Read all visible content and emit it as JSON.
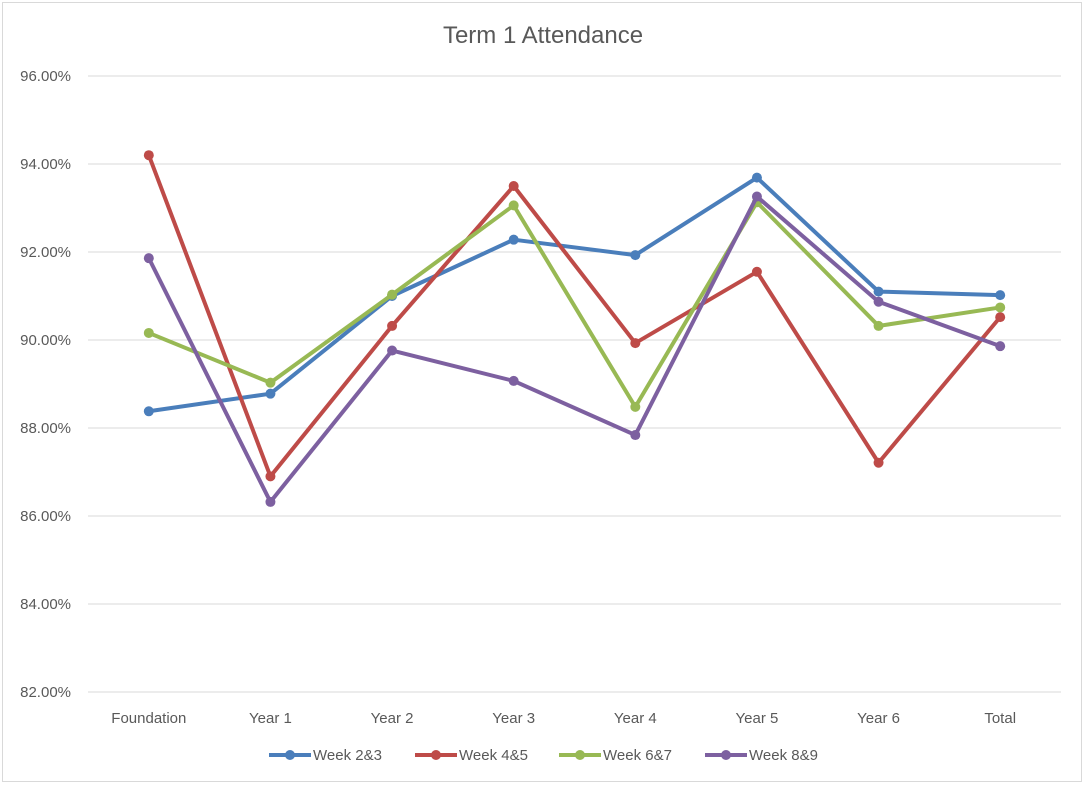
{
  "chart_data": {
    "type": "line",
    "title": "Term 1 Attendance",
    "categories": [
      "Foundation",
      "Year 1",
      "Year 2",
      "Year 3",
      "Year 4",
      "Year 5",
      "Year 6",
      "Total"
    ],
    "ylim": [
      82,
      96
    ],
    "yticks": [
      82,
      84,
      86,
      88,
      90,
      92,
      94,
      96
    ],
    "ytick_labels": [
      "82.00%",
      "84.00%",
      "86.00%",
      "88.00%",
      "90.00%",
      "92.00%",
      "94.00%",
      "96.00%"
    ],
    "grid": true,
    "legend_position": "bottom",
    "series": [
      {
        "name": "Week 2&3",
        "color": "#4a7ebb",
        "values": [
          88.38,
          88.78,
          91.0,
          92.28,
          91.93,
          93.69,
          91.1,
          91.02
        ]
      },
      {
        "name": "Week 4&5",
        "color": "#be4b48",
        "values": [
          94.2,
          86.9,
          90.32,
          93.5,
          89.93,
          91.55,
          87.21,
          90.52
        ]
      },
      {
        "name": "Week 6&7",
        "color": "#98b954",
        "values": [
          90.16,
          89.03,
          91.03,
          93.06,
          88.48,
          93.13,
          90.32,
          90.74
        ]
      },
      {
        "name": "Week 8&9",
        "color": "#7d60a0",
        "values": [
          91.86,
          86.32,
          89.76,
          89.07,
          87.84,
          93.26,
          90.87,
          89.86
        ]
      }
    ]
  }
}
